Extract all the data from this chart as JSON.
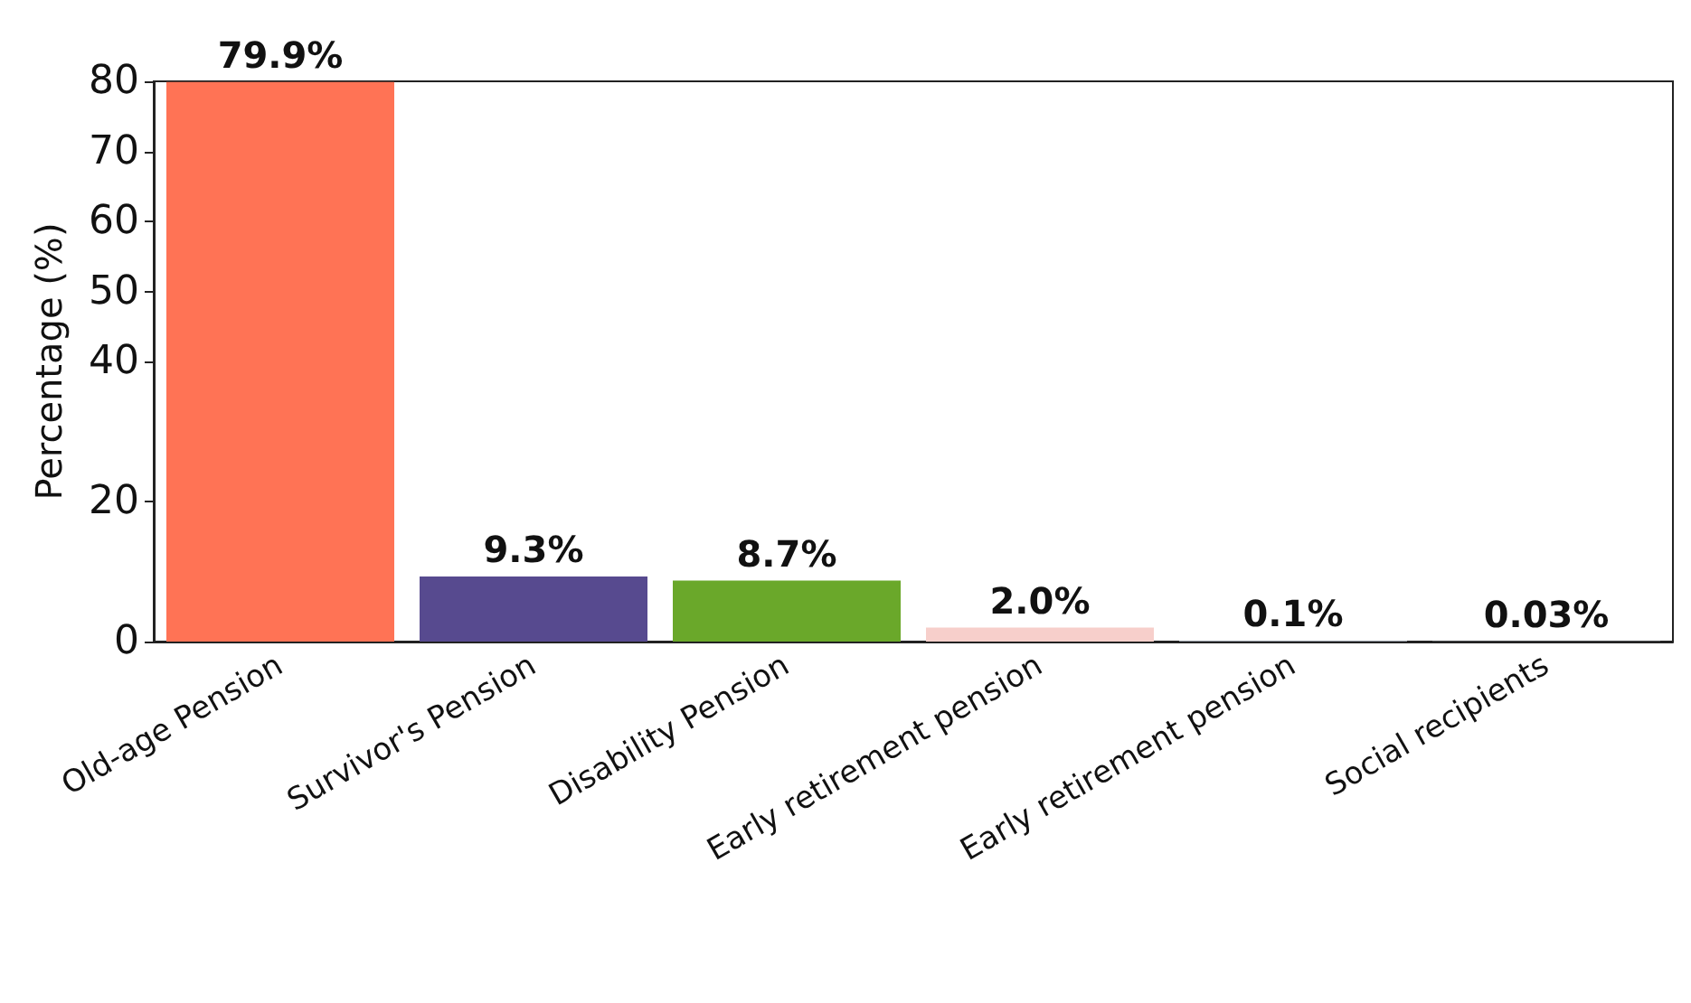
{
  "chart_data": {
    "type": "bar",
    "ylabel": "Percentage (%)",
    "categories": [
      "Old-age Pension",
      "Survivor's Pension",
      "Disability Pension",
      "Early retirement pension",
      "Early retirement pension",
      "Social recipients"
    ],
    "values": [
      79.9,
      9.3,
      8.7,
      2.0,
      0.1,
      0.03
    ],
    "value_labels": [
      "79.9%",
      "9.3%",
      "8.7%",
      "2.0%",
      "0.1%",
      "0.03%"
    ],
    "colors": [
      "#ff7355",
      "#574a8f",
      "#6aa82a",
      "#f7cfcb",
      "#b7c1cc",
      "#b7c1cc"
    ],
    "ylim": [
      0,
      80
    ],
    "yticks": [
      0,
      20,
      40,
      50,
      60,
      70,
      80
    ]
  }
}
